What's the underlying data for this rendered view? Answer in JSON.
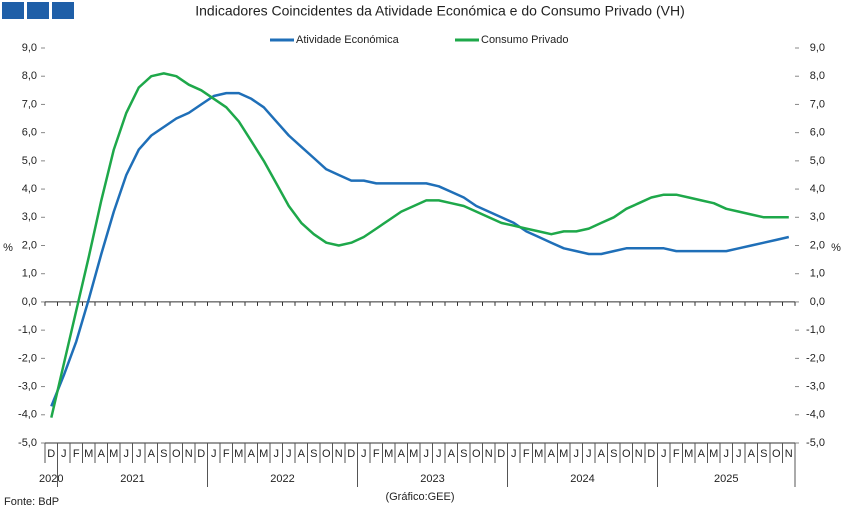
{
  "chart_data": {
    "type": "line",
    "title": "Indicadores Coincidentes da Atividade Económica e do Consumo Privado (VH)",
    "source": "Fonte: BdP",
    "credit": "(Gráfico:GEE)",
    "ylabel": "%",
    "categories": [
      "D",
      "J",
      "F",
      "M",
      "A",
      "M",
      "J",
      "J",
      "A",
      "S",
      "O",
      "N",
      "D",
      "J",
      "F",
      "M",
      "A",
      "M",
      "J",
      "J",
      "A",
      "S",
      "O",
      "N",
      "D",
      "J",
      "F",
      "M",
      "A",
      "M",
      "J",
      "J",
      "A",
      "S",
      "O",
      "N",
      "D",
      "J",
      "F",
      "M",
      "A",
      "M",
      "J",
      "J",
      "A",
      "S",
      "O",
      "N",
      "D",
      "J",
      "F",
      "M",
      "A",
      "M",
      "J",
      "J",
      "A",
      "S",
      "O",
      "N"
    ],
    "years": [
      "2020",
      "2021",
      "2022",
      "2023",
      "2024",
      "2025"
    ],
    "series": [
      {
        "name": "Atividade Económica",
        "color": "#1f6fb8",
        "values": [
          -3.7,
          -2.6,
          -1.4,
          0.1,
          1.7,
          3.2,
          4.5,
          5.4,
          5.9,
          6.2,
          6.5,
          6.7,
          7.0,
          7.3,
          7.4,
          7.4,
          7.2,
          6.9,
          6.4,
          5.9,
          5.5,
          5.1,
          4.7,
          4.5,
          4.3,
          4.3,
          4.2,
          4.2,
          4.2,
          4.2,
          4.2,
          4.1,
          3.9,
          3.7,
          3.4,
          3.2,
          3.0,
          2.8,
          2.5,
          2.3,
          2.1,
          1.9,
          1.8,
          1.7,
          1.7,
          1.8,
          1.9,
          1.9,
          1.9,
          1.9,
          1.8,
          1.8,
          1.8,
          1.8,
          1.8,
          1.9,
          2.0,
          2.1,
          2.2,
          2.3
        ]
      },
      {
        "name": "Consumo Privado",
        "color": "#1ea84a",
        "values": [
          -4.1,
          -2.2,
          -0.3,
          1.6,
          3.6,
          5.4,
          6.7,
          7.6,
          8.0,
          8.1,
          8.0,
          7.7,
          7.5,
          7.2,
          6.9,
          6.4,
          5.7,
          5.0,
          4.2,
          3.4,
          2.8,
          2.4,
          2.1,
          2.0,
          2.1,
          2.3,
          2.6,
          2.9,
          3.2,
          3.4,
          3.6,
          3.6,
          3.5,
          3.4,
          3.2,
          3.0,
          2.8,
          2.7,
          2.6,
          2.5,
          2.4,
          2.5,
          2.5,
          2.6,
          2.8,
          3.0,
          3.3,
          3.5,
          3.7,
          3.8,
          3.8,
          3.7,
          3.6,
          3.5,
          3.3,
          3.2,
          3.1,
          3.0,
          3.0,
          3.0
        ]
      }
    ],
    "ylim": [
      -5,
      9
    ],
    "yticks": [
      {
        "value": 9,
        "label": "9,0"
      },
      {
        "value": 8,
        "label": "8,0"
      },
      {
        "value": 7,
        "label": "7,0"
      },
      {
        "value": 6,
        "label": "6,0"
      },
      {
        "value": 5,
        "label": "5,0"
      },
      {
        "value": 4,
        "label": "4,0"
      },
      {
        "value": 3,
        "label": "3,0"
      },
      {
        "value": 2,
        "label": "2,0"
      },
      {
        "value": 1,
        "label": "1,0"
      },
      {
        "value": 0,
        "label": "0,0"
      },
      {
        "value": -1,
        "label": "-1,0"
      },
      {
        "value": -2,
        "label": "-2,0"
      },
      {
        "value": -3,
        "label": "-3,0"
      },
      {
        "value": -4,
        "label": "-4,0"
      },
      {
        "value": -5,
        "label": "-5,0"
      }
    ]
  }
}
